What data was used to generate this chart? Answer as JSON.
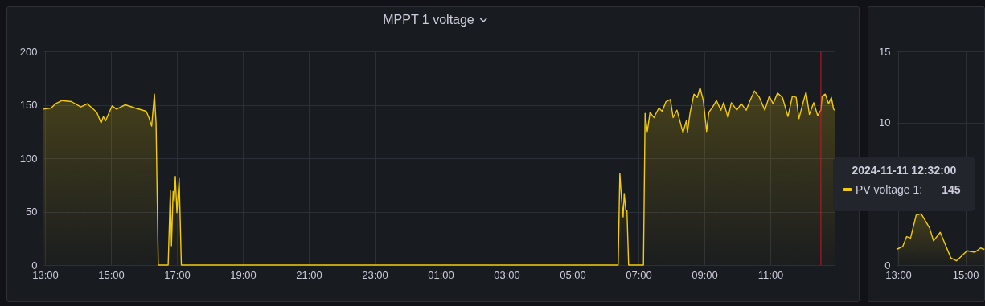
{
  "chart_data": [
    {
      "type": "area",
      "title": "MPPT 1 voltage",
      "x": [
        "2024-11-10T12:57",
        "2024-11-10T13:11",
        "2024-11-10T13:19",
        "2024-11-10T13:31",
        "2024-11-10T13:48",
        "2024-11-10T14:05",
        "2024-11-10T14:17",
        "2024-11-10T14:34",
        "2024-11-10T14:42",
        "2024-11-10T14:46",
        "2024-11-10T14:50",
        "2024-11-10T15:02",
        "2024-11-10T15:10",
        "2024-11-10T15:18",
        "2024-11-10T15:26",
        "2024-11-10T15:44",
        "2024-11-10T16:04",
        "2024-11-10T16:09",
        "2024-11-10T16:14",
        "2024-11-10T16:19",
        "2024-11-10T16:22",
        "2024-11-10T16:26",
        "2024-11-10T16:44",
        "2024-11-10T16:48",
        "2024-11-10T16:50",
        "2024-11-10T16:53",
        "2024-11-10T16:55",
        "2024-11-10T16:57",
        "2024-11-10T17:00",
        "2024-11-10T17:04",
        "2024-11-10T17:08",
        "2024-11-11T06:23",
        "2024-11-11T06:26",
        "2024-11-11T06:29",
        "2024-11-11T06:32",
        "2024-11-11T06:34",
        "2024-11-11T06:37",
        "2024-11-11T06:39",
        "2024-11-11T06:42",
        "2024-11-11T07:09",
        "2024-11-11T07:12",
        "2024-11-11T07:16",
        "2024-11-11T07:21",
        "2024-11-11T07:28",
        "2024-11-11T07:37",
        "2024-11-11T07:43",
        "2024-11-11T07:50",
        "2024-11-11T07:58",
        "2024-11-11T08:03",
        "2024-11-11T08:10",
        "2024-11-11T08:21",
        "2024-11-11T08:27",
        "2024-11-11T08:29",
        "2024-11-11T08:34",
        "2024-11-11T08:41",
        "2024-11-11T08:47",
        "2024-11-11T08:52",
        "2024-11-11T08:58",
        "2024-11-11T09:04",
        "2024-11-11T09:08",
        "2024-11-11T09:15",
        "2024-11-11T09:22",
        "2024-11-11T09:30",
        "2024-11-11T09:35",
        "2024-11-11T09:43",
        "2024-11-11T09:49",
        "2024-11-11T09:59",
        "2024-11-11T10:07",
        "2024-11-11T10:16",
        "2024-11-11T10:23",
        "2024-11-11T10:31",
        "2024-11-11T10:40",
        "2024-11-11T10:50",
        "2024-11-11T10:58",
        "2024-11-11T11:05",
        "2024-11-11T11:13",
        "2024-11-11T11:22",
        "2024-11-11T11:32",
        "2024-11-11T11:40",
        "2024-11-11T11:47",
        "2024-11-11T11:52",
        "2024-11-11T11:59",
        "2024-11-11T12:05",
        "2024-11-11T12:11",
        "2024-11-11T12:19",
        "2024-11-11T12:26",
        "2024-11-11T12:32",
        "2024-11-11T12:34",
        "2024-11-11T12:40",
        "2024-11-11T12:46",
        "2024-11-11T12:51",
        "2024-11-11T12:55",
        "2024-11-11T12:57"
      ],
      "series": [
        {
          "name": "PV voltage 1:",
          "color": "#f2cc0c",
          "values": [
            146,
            147,
            151,
            154,
            153,
            148,
            151,
            143,
            133,
            139,
            135,
            149,
            146,
            148,
            150,
            147,
            144,
            138,
            130,
            160,
            133,
            0,
            0,
            70,
            18,
            69,
            60,
            83,
            49,
            81,
            0,
            0,
            86,
            63,
            45,
            67,
            51,
            51,
            0,
            0,
            142,
            125,
            143,
            138,
            147,
            144,
            153,
            155,
            138,
            145,
            124,
            135,
            124,
            143,
            160,
            157,
            166,
            154,
            125,
            143,
            148,
            154,
            145,
            152,
            138,
            152,
            145,
            151,
            145,
            154,
            163,
            157,
            145,
            158,
            151,
            161,
            157,
            139,
            158,
            157,
            137,
            151,
            162,
            141,
            152,
            140,
            145,
            158,
            160,
            151,
            157,
            146,
            145
          ]
        }
      ],
      "xlim": [
        "2024-11-10T12:57",
        "2024-11-11T12:57"
      ],
      "xticks": [
        {
          "value": "2024-11-10T13:00",
          "label": "13:00"
        },
        {
          "value": "2024-11-10T15:00",
          "label": "15:00"
        },
        {
          "value": "2024-11-10T17:00",
          "label": "17:00"
        },
        {
          "value": "2024-11-10T19:00",
          "label": "19:00"
        },
        {
          "value": "2024-11-10T21:00",
          "label": "21:00"
        },
        {
          "value": "2024-11-10T23:00",
          "label": "23:00"
        },
        {
          "value": "2024-11-11T01:00",
          "label": "01:00"
        },
        {
          "value": "2024-11-11T03:00",
          "label": "03:00"
        },
        {
          "value": "2024-11-11T05:00",
          "label": "05:00"
        },
        {
          "value": "2024-11-11T07:00",
          "label": "07:00"
        },
        {
          "value": "2024-11-11T09:00",
          "label": "09:00"
        },
        {
          "value": "2024-11-11T11:00",
          "label": "11:00"
        }
      ],
      "ylim": [
        0,
        200
      ],
      "yticks": [
        0,
        50,
        100,
        150,
        200
      ],
      "grid": true,
      "ref_lines": [
        {
          "axis": "x",
          "value": "2024-11-11T12:32",
          "color": "#c4162a"
        }
      ],
      "annotations": [
        "2024-11-11 12:32:00",
        "145"
      ]
    },
    {
      "type": "area",
      "x": [
        "2024-11-10T12:57",
        "2024-11-10T13:08",
        "2024-11-10T13:15",
        "2024-11-10T13:22",
        "2024-11-10T13:32",
        "2024-11-10T13:41",
        "2024-11-10T13:56",
        "2024-11-10T14:03",
        "2024-11-10T14:15",
        "2024-11-10T14:34",
        "2024-11-10T14:44",
        "2024-11-10T15:03",
        "2024-11-10T15:17",
        "2024-11-10T15:27",
        "2024-11-10T15:34"
      ],
      "series": [
        {
          "color": "#f2cc0c",
          "values": [
            1.1,
            1.3,
            2.0,
            1.9,
            3.5,
            3.6,
            2.6,
            1.7,
            2.3,
            0.5,
            0.3,
            1.0,
            0.9,
            1.2,
            1.1
          ]
        }
      ],
      "xlim": [
        "2024-11-10T12:57",
        "2024-11-10T15:35"
      ],
      "xticks": [
        {
          "value": "2024-11-10T13:00",
          "label": "13:00"
        },
        {
          "value": "2024-11-10T15:00",
          "label": "15:00"
        }
      ],
      "ylim": [
        0,
        15
      ],
      "yticks": [
        0,
        10,
        15
      ],
      "grid": true
    }
  ]
}
